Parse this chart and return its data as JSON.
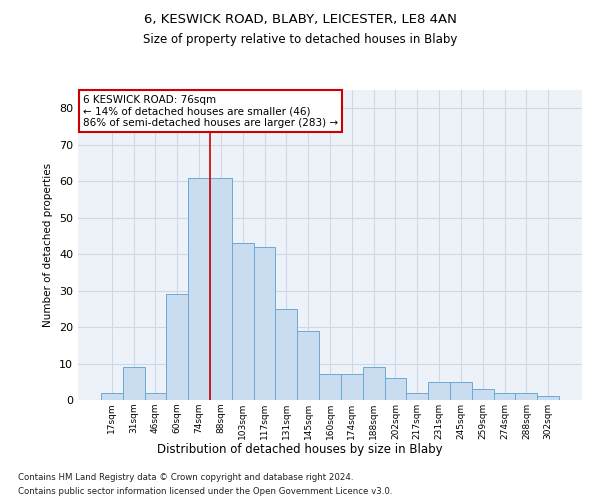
{
  "title1": "6, KESWICK ROAD, BLABY, LEICESTER, LE8 4AN",
  "title2": "Size of property relative to detached houses in Blaby",
  "xlabel": "Distribution of detached houses by size in Blaby",
  "ylabel": "Number of detached properties",
  "categories": [
    "17sqm",
    "31sqm",
    "46sqm",
    "60sqm",
    "74sqm",
    "88sqm",
    "103sqm",
    "117sqm",
    "131sqm",
    "145sqm",
    "160sqm",
    "174sqm",
    "188sqm",
    "202sqm",
    "217sqm",
    "231sqm",
    "245sqm",
    "259sqm",
    "274sqm",
    "288sqm",
    "302sqm"
  ],
  "values": [
    2,
    9,
    2,
    29,
    61,
    61,
    43,
    42,
    25,
    19,
    7,
    7,
    9,
    6,
    2,
    5,
    5,
    3,
    2,
    2,
    1
  ],
  "bar_color": "#c9dcf0",
  "bar_edge_color": "#6aaad4",
  "vline_color": "#cc0000",
  "annotation_text": "6 KESWICK ROAD: 76sqm\n← 14% of detached houses are smaller (46)\n86% of semi-detached houses are larger (283) →",
  "annotation_box_color": "#ffffff",
  "annotation_box_edge_color": "#cc0000",
  "grid_color": "#d0d8e8",
  "background_color": "#edf2f8",
  "footer1": "Contains HM Land Registry data © Crown copyright and database right 2024.",
  "footer2": "Contains public sector information licensed under the Open Government Licence v3.0.",
  "ylim": [
    0,
    85
  ],
  "yticks": [
    0,
    10,
    20,
    30,
    40,
    50,
    60,
    70,
    80
  ]
}
